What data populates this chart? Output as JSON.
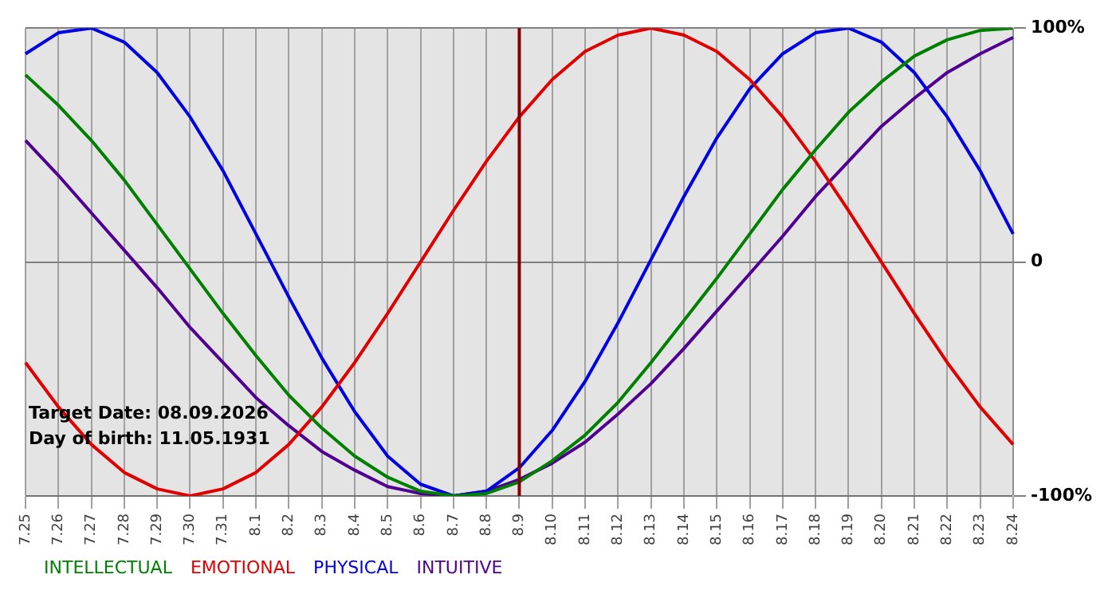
{
  "chart_data": {
    "type": "line",
    "categories": [
      "7.25",
      "7.26",
      "7.27",
      "7.28",
      "7.29",
      "7.30",
      "7.31",
      "8.1",
      "8.2",
      "8.3",
      "8.4",
      "8.5",
      "8.6",
      "8.7",
      "8.8",
      "8.9",
      "8.10",
      "8.11",
      "8.12",
      "8.13",
      "8.14",
      "8.15",
      "8.16",
      "8.17",
      "8.18",
      "8.19",
      "8.20",
      "8.21",
      "8.22",
      "8.23",
      "8.24"
    ],
    "series": [
      {
        "name": "INTELLECTUAL",
        "color": "#008000",
        "values": [
          80,
          67,
          52,
          35,
          16,
          -3,
          -22,
          -40,
          -57,
          -71,
          -83,
          -92,
          -98,
          -100,
          -99,
          -94,
          -85,
          -74,
          -60,
          -43,
          -25,
          -7,
          12,
          31,
          48,
          64,
          77,
          88,
          95,
          99,
          100
        ]
      },
      {
        "name": "EMOTIONAL",
        "color": "#e00000",
        "values": [
          -43,
          -62,
          -78,
          -90,
          -97,
          -100,
          -97,
          -90,
          -78,
          -62,
          -43,
          -22,
          0,
          22,
          43,
          62,
          78,
          90,
          97,
          100,
          97,
          90,
          78,
          62,
          43,
          22,
          0,
          -22,
          -43,
          -62,
          -78
        ]
      },
      {
        "name": "PHYSICAL",
        "color": "#0000e0",
        "values": [
          89,
          98,
          100,
          94,
          81,
          62,
          39,
          12,
          -15,
          -41,
          -64,
          -83,
          -95,
          -100,
          -98,
          -88,
          -72,
          -51,
          -26,
          1,
          28,
          53,
          74,
          89,
          98,
          100,
          94,
          81,
          62,
          39,
          12
        ]
      },
      {
        "name": "INTUITIVE",
        "color": "#500090",
        "values": [
          52,
          37,
          21,
          5,
          -11,
          -28,
          -43,
          -58,
          -70,
          -81,
          -89,
          -96,
          -99,
          -100,
          -98,
          -93,
          -86,
          -77,
          -65,
          -52,
          -37,
          -21,
          -5,
          11,
          28,
          43,
          58,
          70,
          81,
          89,
          96
        ]
      }
    ],
    "ylim": [
      -100,
      100
    ],
    "yticks": [
      {
        "value": -100,
        "label": "-100%"
      },
      0,
      {
        "value": 100,
        "label": "100%"
      }
    ],
    "grid": true,
    "legend": "bottom left",
    "marker": "none",
    "line_style": "solid",
    "ref_lines": [
      {
        "axis": "x",
        "value": "8.9",
        "color": "#800000"
      }
    ],
    "annotations": [
      "Target Date: 08.09.2026",
      "Day of birth: 11.05.1931"
    ]
  }
}
